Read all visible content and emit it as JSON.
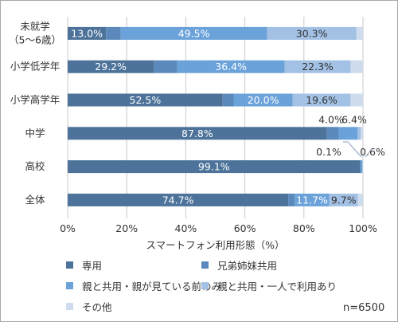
{
  "chart_data": {
    "type": "bar",
    "orientation": "horizontal",
    "stacked": true,
    "categories": [
      "未就学\n（5〜6歳）",
      "小学低学年",
      "小学高学年",
      "中学",
      "高校",
      "全体"
    ],
    "series": [
      {
        "name": "専用",
        "color": "#4d739a",
        "values": [
          13.0,
          29.2,
          52.5,
          87.8,
          99.1,
          74.7
        ]
      },
      {
        "name": "兄弟姉妹共用",
        "color": "#5b89bb",
        "values": [
          5.0,
          7.9,
          3.7,
          4.0,
          0.1,
          2.2
        ]
      },
      {
        "name": "親と共用・親が見ている前のみ",
        "color": "#6ba2da",
        "values": [
          49.5,
          36.4,
          20.0,
          6.4,
          0.6,
          11.7
        ]
      },
      {
        "name": "親と共用・一人で利用あり",
        "color": "#a3c1e4",
        "values": [
          30.3,
          22.3,
          19.6,
          1.0,
          0.1,
          9.7
        ]
      },
      {
        "name": "その他",
        "color": "#cfdcee",
        "values": [
          2.2,
          4.2,
          4.2,
          0.8,
          0.1,
          1.7
        ]
      }
    ],
    "data_labels": [
      {
        "row": 0,
        "series": 0,
        "text": "13.0%",
        "pos": "inside"
      },
      {
        "row": 0,
        "series": 2,
        "text": "49.5%",
        "pos": "inside"
      },
      {
        "row": 0,
        "series": 3,
        "text": "30.3%",
        "pos": "inside"
      },
      {
        "row": 1,
        "series": 0,
        "text": "29.2%",
        "pos": "inside"
      },
      {
        "row": 1,
        "series": 2,
        "text": "36.4%",
        "pos": "inside"
      },
      {
        "row": 1,
        "series": 3,
        "text": "22.3%",
        "pos": "inside"
      },
      {
        "row": 2,
        "series": 0,
        "text": "52.5%",
        "pos": "inside"
      },
      {
        "row": 2,
        "series": 2,
        "text": "20.0%",
        "pos": "inside"
      },
      {
        "row": 2,
        "series": 3,
        "text": "19.6%",
        "pos": "inside"
      },
      {
        "row": 3,
        "series": 0,
        "text": "87.8%",
        "pos": "inside"
      },
      {
        "row": 3,
        "series": 1,
        "text": "4.0%",
        "pos": "above"
      },
      {
        "row": 3,
        "series": 2,
        "text": "6.4%",
        "pos": "above"
      },
      {
        "row": 4,
        "series": 0,
        "text": "99.1%",
        "pos": "inside"
      },
      {
        "row": 4,
        "series": 1,
        "text": "0.1%",
        "pos": "callout-left"
      },
      {
        "row": 4,
        "series": 2,
        "text": "0.6%",
        "pos": "callout-right"
      },
      {
        "row": 5,
        "series": 0,
        "text": "74.7%",
        "pos": "inside"
      },
      {
        "row": 5,
        "series": 2,
        "text": "11.7%",
        "pos": "inside"
      },
      {
        "row": 5,
        "series": 3,
        "text": "9.7%",
        "pos": "inside"
      }
    ],
    "xlim": [
      0,
      100
    ],
    "xticks": [
      0,
      20,
      40,
      60,
      80,
      100
    ],
    "xtick_labels": [
      "0%",
      "20%",
      "40%",
      "60%",
      "80%",
      "100%"
    ],
    "xlabel": "スマートフォン利用形態（%）",
    "grid": "vertical",
    "legend_position": "bottom",
    "note": "n=6500"
  }
}
